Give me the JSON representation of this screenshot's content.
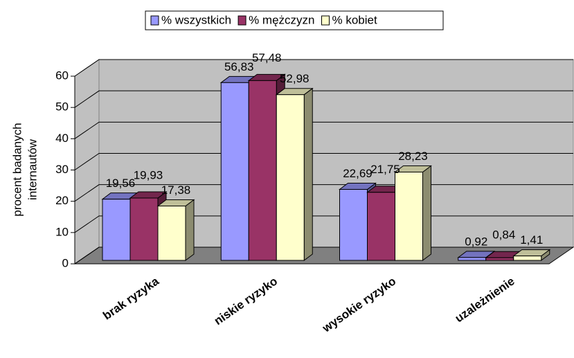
{
  "chart_data": {
    "type": "bar3d",
    "categories": [
      "brak ryzyka",
      "niskie ryzyko",
      "wysokie ryzyko",
      "uzależnienie"
    ],
    "series": [
      {
        "name": "% wszystkich",
        "color": "#9999ff",
        "values": [
          19.56,
          56.83,
          22.69,
          0.92
        ],
        "value_labels": [
          "19,56",
          "56,83",
          "22,69",
          "0,92"
        ]
      },
      {
        "name": "% mężczyzn",
        "color": "#993366",
        "values": [
          19.93,
          57.48,
          21.75,
          0.84
        ],
        "value_labels": [
          "19,93",
          "57,48",
          "21,75",
          "0,84"
        ]
      },
      {
        "name": "% kobiet",
        "color": "#ffffcc",
        "values": [
          17.38,
          52.98,
          28.23,
          1.41
        ],
        "value_labels": [
          "17,38",
          "52,98",
          "28,23",
          "1,41"
        ]
      }
    ],
    "ylabel": [
      "procent badanych",
      "internautów"
    ],
    "ylim": [
      0,
      60
    ],
    "yticks": [
      0,
      10,
      20,
      30,
      40,
      50,
      60
    ],
    "grid": true,
    "legend": "top"
  }
}
